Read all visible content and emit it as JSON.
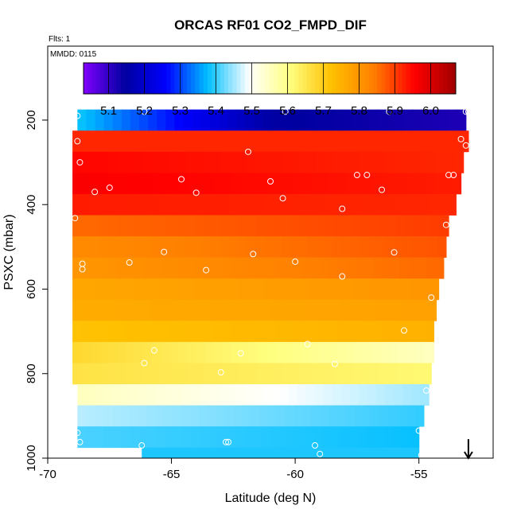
{
  "chart_data": {
    "type": "heatmap",
    "title": "ORCAS RF01 CO2_FMPD_DIF",
    "annotations": {
      "flights": "Flts: 1",
      "date": "MMDD: 0115"
    },
    "xlabel": "Latitude (deg N)",
    "ylabel": "PSXC (mbar)",
    "xlim": [
      -70,
      -52
    ],
    "ylim": [
      1000,
      25
    ],
    "y_reversed": true,
    "x_ticks": [
      "-70",
      "-65",
      "-60",
      "-55"
    ],
    "x_tick_values": [
      -70,
      -65,
      -60,
      -55
    ],
    "y_ticks": [
      "200",
      "400",
      "600",
      "800",
      "1000"
    ],
    "y_tick_values": [
      200,
      400,
      600,
      800,
      1000
    ],
    "colorbar": {
      "range": [
        5.03,
        6.07
      ],
      "tick_values": [
        5.1,
        5.2,
        5.3,
        5.4,
        5.5,
        5.6,
        5.7,
        5.8,
        5.9,
        6.0
      ],
      "tick_labels": [
        "5.1",
        "5.2",
        "5.3",
        "5.4",
        "5.5",
        "5.6",
        "5.7",
        "5.8",
        "5.9",
        "6.0"
      ],
      "colors": [
        "#8000ff",
        "#0000a0",
        "#0000ff",
        "#00bfff",
        "#ffffff",
        "#ffff80",
        "#ffc000",
        "#ff8000",
        "#ff0000",
        "#a00000"
      ]
    },
    "rows": [
      {
        "p": [
          175,
          225
        ],
        "x": [
          -68.8,
          -53.1
        ],
        "value_start": 5.38,
        "value_end": 5.12,
        "value_mid": 5.15
      },
      {
        "p": [
          225,
          275
        ],
        "x": [
          -69.0,
          -53.0
        ],
        "value_start": 5.92,
        "value_end": 5.92
      },
      {
        "p": [
          275,
          325
        ],
        "x": [
          -69.0,
          -53.2
        ],
        "value_start": 5.95,
        "value_end": 5.92
      },
      {
        "p": [
          325,
          375
        ],
        "x": [
          -69.0,
          -53.3
        ],
        "value_start": 5.96,
        "value_end": 5.93
      },
      {
        "p": [
          375,
          425
        ],
        "x": [
          -69.0,
          -53.5
        ],
        "value_start": 5.93,
        "value_end": 5.92
      },
      {
        "p": [
          425,
          475
        ],
        "x": [
          -69.0,
          -53.8
        ],
        "value_start": 5.86,
        "value_end": 5.9
      },
      {
        "p": [
          475,
          525
        ],
        "x": [
          -69.0,
          -53.9
        ],
        "value_start": 5.82,
        "value_end": 5.88
      },
      {
        "p": [
          525,
          575
        ],
        "x": [
          -69.0,
          -54.0
        ],
        "value_start": 5.8,
        "value_end": 5.86
      },
      {
        "p": [
          575,
          625
        ],
        "x": [
          -69.0,
          -54.2
        ],
        "value_start": 5.77,
        "value_end": 5.8
      },
      {
        "p": [
          625,
          675
        ],
        "x": [
          -69.0,
          -54.3
        ],
        "value_start": 5.76,
        "value_end": 5.78
      },
      {
        "p": [
          675,
          725
        ],
        "x": [
          -69.0,
          -54.4
        ],
        "value_start": 5.72,
        "value_end": 5.75
      },
      {
        "p": [
          725,
          775
        ],
        "x": [
          -69.0,
          -54.4
        ],
        "value_start": 5.68,
        "value_end": 5.55
      },
      {
        "p": [
          775,
          825
        ],
        "x": [
          -69.0,
          -54.5
        ],
        "value_start": 5.66,
        "value_end": 5.62
      },
      {
        "p": [
          825,
          875
        ],
        "x": [
          -68.8,
          -54.6
        ],
        "value_start": 5.55,
        "value_end": 5.45
      },
      {
        "p": [
          875,
          925
        ],
        "x": [
          -68.8,
          -54.8
        ],
        "value_start": 5.46,
        "value_end": 5.4
      },
      {
        "p": [
          925,
          975
        ],
        "x": [
          -68.8,
          -55.0
        ],
        "value_start": 5.41,
        "value_end": 5.38
      },
      {
        "p": [
          975,
          1000
        ],
        "x": [
          -66.2,
          -55.0
        ],
        "value_start": 5.39,
        "value_end": 5.39
      }
    ],
    "sample_points": [
      [
        -68.8,
        190
      ],
      [
        -66.1,
        180
      ],
      [
        -60.4,
        180
      ],
      [
        -56.2,
        180
      ],
      [
        -53.1,
        180
      ],
      [
        -53.0,
        180
      ],
      [
        -68.8,
        250
      ],
      [
        -61.9,
        275
      ],
      [
        -53.3,
        245
      ],
      [
        -53.1,
        260
      ],
      [
        -68.7,
        300
      ],
      [
        -68.1,
        370
      ],
      [
        -67.5,
        360
      ],
      [
        -64.6,
        340
      ],
      [
        -64.0,
        372
      ],
      [
        -61.0,
        345
      ],
      [
        -60.5,
        385
      ],
      [
        -57.5,
        330
      ],
      [
        -57.1,
        330
      ],
      [
        -56.5,
        365
      ],
      [
        -53.8,
        330
      ],
      [
        -53.6,
        330
      ],
      [
        -68.9,
        432
      ],
      [
        -58.1,
        410
      ],
      [
        -53.9,
        448
      ],
      [
        -68.6,
        540
      ],
      [
        -68.6,
        553
      ],
      [
        -66.7,
        537
      ],
      [
        -65.3,
        512
      ],
      [
        -63.6,
        555
      ],
      [
        -61.7,
        517
      ],
      [
        -60.0,
        535
      ],
      [
        -58.1,
        570
      ],
      [
        -56.0,
        513
      ],
      [
        -54.5,
        620
      ],
      [
        -62.2,
        752
      ],
      [
        -63.0,
        797
      ],
      [
        -65.7,
        745
      ],
      [
        -66.1,
        775
      ],
      [
        -59.5,
        730
      ],
      [
        -58.4,
        777
      ],
      [
        -55.6,
        698
      ],
      [
        -54.7,
        840
      ],
      [
        -68.8,
        940
      ],
      [
        -68.7,
        962
      ],
      [
        -66.2,
        970
      ],
      [
        -62.8,
        962
      ],
      [
        -62.7,
        962
      ],
      [
        -59.2,
        970
      ],
      [
        -59.0,
        990
      ],
      [
        -55.0,
        935
      ],
      [
        -54.9,
        993
      ]
    ],
    "arrow": {
      "x": -53.0,
      "p_from": 955,
      "p_to": 1000
    },
    "grid": false,
    "legend": "colorbar top"
  }
}
